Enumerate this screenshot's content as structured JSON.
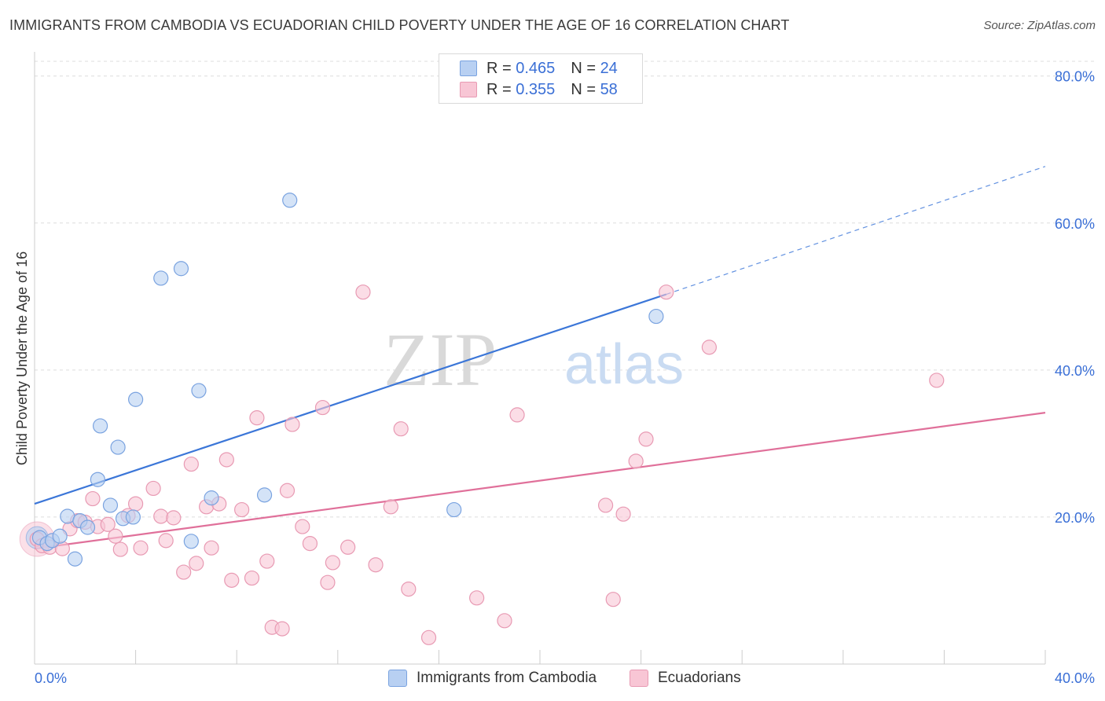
{
  "title": "IMMIGRANTS FROM CAMBODIA VS ECUADORIAN CHILD POVERTY UNDER THE AGE OF 16 CORRELATION CHART",
  "source": "Source: ZipAtlas.com",
  "watermark": {
    "zip": "ZIP",
    "atlas": "atlas"
  },
  "legend_top": [
    {
      "r_label": "R =",
      "r_value": "0.465",
      "n_label": "N =",
      "n_value": "24"
    },
    {
      "r_label": "R =",
      "r_value": "0.355",
      "n_label": "N =",
      "n_value": "58"
    }
  ],
  "legend_bottom": [
    {
      "label": "Immigrants from Cambodia"
    },
    {
      "label": "Ecuadorians"
    }
  ],
  "colors": {
    "cambodia_fill": "#b8d0f2",
    "cambodia_stroke": "#7aa3e0",
    "cambodia_line": "#3b76d8",
    "ecuador_fill": "#f8c6d5",
    "ecuador_stroke": "#e89ab3",
    "ecuador_line": "#e0709a",
    "tick_label": "#3a6fd6",
    "grid": "#dddddd"
  },
  "chart_data": {
    "type": "scatter",
    "title": "IMMIGRANTS FROM CAMBODIA VS ECUADORIAN CHILD POVERTY UNDER THE AGE OF 16 CORRELATION CHART",
    "xlabel": "",
    "ylabel": "Child Poverty Under the Age of 16",
    "xlim": [
      0,
      40
    ],
    "ylim": [
      0,
      82
    ],
    "x_tick_labels": [
      "0.0%",
      "40.0%"
    ],
    "y_ticks": [
      20,
      40,
      60,
      80
    ],
    "y_tick_labels": [
      "20.0%",
      "40.0%",
      "60.0%",
      "80.0%"
    ],
    "grid": true,
    "legend_position": "top-center",
    "series": [
      {
        "name": "Immigrants from Cambodia",
        "r": 0.465,
        "n": 24,
        "trend": {
          "x0": 0,
          "y0": 21.8,
          "x1": 25.0,
          "y1": 50.3,
          "dashed_to_x": 40,
          "dashed_to_y": 67.7
        },
        "points": [
          {
            "x": 0.2,
            "y": 17.2
          },
          {
            "x": 0.5,
            "y": 16.4
          },
          {
            "x": 0.7,
            "y": 16.8
          },
          {
            "x": 1.0,
            "y": 17.4
          },
          {
            "x": 1.3,
            "y": 20.1
          },
          {
            "x": 1.6,
            "y": 14.3
          },
          {
            "x": 1.8,
            "y": 19.5
          },
          {
            "x": 2.1,
            "y": 18.6
          },
          {
            "x": 2.5,
            "y": 25.1
          },
          {
            "x": 2.6,
            "y": 32.4
          },
          {
            "x": 3.0,
            "y": 21.6
          },
          {
            "x": 3.3,
            "y": 29.5
          },
          {
            "x": 3.5,
            "y": 19.8
          },
          {
            "x": 3.9,
            "y": 20.0
          },
          {
            "x": 4.0,
            "y": 36.0
          },
          {
            "x": 5.0,
            "y": 52.5
          },
          {
            "x": 5.8,
            "y": 53.8
          },
          {
            "x": 6.2,
            "y": 16.7
          },
          {
            "x": 6.5,
            "y": 37.2
          },
          {
            "x": 7.0,
            "y": 22.6
          },
          {
            "x": 9.1,
            "y": 23.0
          },
          {
            "x": 10.1,
            "y": 63.1
          },
          {
            "x": 16.6,
            "y": 21.0
          },
          {
            "x": 24.6,
            "y": 47.3
          }
        ]
      },
      {
        "name": "Ecuadorians",
        "r": 0.355,
        "n": 58,
        "trend": {
          "x0": 0,
          "y0": 15.7,
          "x1": 40,
          "y1": 34.2
        },
        "points": [
          {
            "x": 0.1,
            "y": 17.0
          },
          {
            "x": 0.3,
            "y": 16.1
          },
          {
            "x": 0.6,
            "y": 15.9
          },
          {
            "x": 1.1,
            "y": 15.7
          },
          {
            "x": 1.4,
            "y": 18.4
          },
          {
            "x": 1.7,
            "y": 19.5
          },
          {
            "x": 2.0,
            "y": 19.3
          },
          {
            "x": 2.3,
            "y": 22.5
          },
          {
            "x": 2.5,
            "y": 18.7
          },
          {
            "x": 2.9,
            "y": 19.0
          },
          {
            "x": 3.2,
            "y": 17.4
          },
          {
            "x": 3.4,
            "y": 15.6
          },
          {
            "x": 3.7,
            "y": 20.2
          },
          {
            "x": 4.0,
            "y": 21.8
          },
          {
            "x": 4.2,
            "y": 15.8
          },
          {
            "x": 4.7,
            "y": 23.9
          },
          {
            "x": 5.0,
            "y": 20.1
          },
          {
            "x": 5.2,
            "y": 16.8
          },
          {
            "x": 5.5,
            "y": 19.9
          },
          {
            "x": 5.9,
            "y": 12.5
          },
          {
            "x": 6.2,
            "y": 27.2
          },
          {
            "x": 6.4,
            "y": 13.7
          },
          {
            "x": 6.8,
            "y": 21.4
          },
          {
            "x": 7.0,
            "y": 15.8
          },
          {
            "x": 7.3,
            "y": 21.8
          },
          {
            "x": 7.6,
            "y": 27.8
          },
          {
            "x": 7.8,
            "y": 11.4
          },
          {
            "x": 8.2,
            "y": 21.0
          },
          {
            "x": 8.6,
            "y": 11.7
          },
          {
            "x": 8.8,
            "y": 33.5
          },
          {
            "x": 9.2,
            "y": 14.0
          },
          {
            "x": 9.4,
            "y": 5.0
          },
          {
            "x": 9.8,
            "y": 4.8
          },
          {
            "x": 10.0,
            "y": 23.6
          },
          {
            "x": 10.2,
            "y": 32.6
          },
          {
            "x": 10.6,
            "y": 18.7
          },
          {
            "x": 10.9,
            "y": 16.4
          },
          {
            "x": 11.4,
            "y": 34.9
          },
          {
            "x": 11.6,
            "y": 11.1
          },
          {
            "x": 11.8,
            "y": 13.8
          },
          {
            "x": 12.4,
            "y": 15.9
          },
          {
            "x": 13.0,
            "y": 50.6
          },
          {
            "x": 13.5,
            "y": 13.5
          },
          {
            "x": 14.1,
            "y": 21.4
          },
          {
            "x": 14.5,
            "y": 32.0
          },
          {
            "x": 14.8,
            "y": 10.2
          },
          {
            "x": 15.6,
            "y": 3.6
          },
          {
            "x": 17.5,
            "y": 9.0
          },
          {
            "x": 18.6,
            "y": 5.9
          },
          {
            "x": 19.1,
            "y": 33.9
          },
          {
            "x": 22.6,
            "y": 21.6
          },
          {
            "x": 22.9,
            "y": 8.8
          },
          {
            "x": 23.3,
            "y": 20.4
          },
          {
            "x": 23.8,
            "y": 27.6
          },
          {
            "x": 24.2,
            "y": 30.6
          },
          {
            "x": 25.0,
            "y": 50.6
          },
          {
            "x": 26.7,
            "y": 43.1
          },
          {
            "x": 35.7,
            "y": 38.6
          }
        ]
      }
    ]
  }
}
